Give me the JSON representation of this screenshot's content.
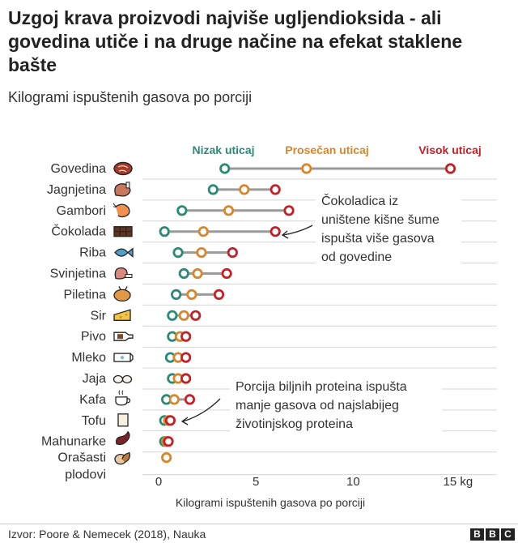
{
  "title": "Uzgoj krava proizvodi najviše ugljendioksida - ali govedina utiče i na druge načine na efekat staklene bašte",
  "subtitle": "Kilogrami ispuštenih gasova po porciji",
  "source": "Izvor: Poore & Nemecek (2018), Nauka",
  "logo_letters": [
    "B",
    "B",
    "C"
  ],
  "colors": {
    "low": "#2a8a78",
    "avg": "#d9862a",
    "high": "#c32127",
    "range": "#9a9a9a",
    "grid": "#d6d6d6"
  },
  "chart_data": {
    "type": "dot-range",
    "title": "Uzgoj krava proizvodi najviše ugljendioksida - ali govedina utiče i na druge načine na efekat staklene bašte",
    "subtitle": "Kilogrami ispuštenih gasova po porciji",
    "xlabel": "Kilogrami ispuštenih gasova po porciji",
    "xlim": [
      0,
      16
    ],
    "x_ticks": [
      {
        "value": 0,
        "label": "0"
      },
      {
        "value": 5,
        "label": "5"
      },
      {
        "value": 10,
        "label": "10"
      },
      {
        "value": 15,
        "label": "15 kg"
      }
    ],
    "grid": true,
    "legend_position": "top",
    "series": [
      {
        "name": "Nizak uticaj",
        "key": "low"
      },
      {
        "name": "Prosečan uticaj",
        "key": "avg"
      },
      {
        "name": "Visok uticaj",
        "key": "high"
      }
    ],
    "categories": [
      {
        "label": "Govedina",
        "icon": "beef-steak-icon",
        "low": 3.4,
        "avg": 7.6,
        "high": 15.0
      },
      {
        "label": "Jagnjetina",
        "icon": "lamb-chop-icon",
        "low": 2.8,
        "avg": 4.4,
        "high": 6.0
      },
      {
        "label": "Gambori",
        "icon": "shrimp-icon",
        "low": 1.2,
        "avg": 3.6,
        "high": 6.7
      },
      {
        "label": "Čokolada",
        "icon": "chocolate-bar-icon",
        "low": 0.3,
        "avg": 2.3,
        "high": 6.0
      },
      {
        "label": "Riba",
        "icon": "fish-icon",
        "low": 1.0,
        "avg": 2.2,
        "high": 3.8
      },
      {
        "label": "Svinjetina",
        "icon": "pork-leg-icon",
        "low": 1.3,
        "avg": 2.0,
        "high": 3.5
      },
      {
        "label": "Piletina",
        "icon": "roast-chicken-icon",
        "low": 0.9,
        "avg": 1.7,
        "high": 3.1
      },
      {
        "label": "Sir",
        "icon": "cheese-icon",
        "low": 0.7,
        "avg": 1.3,
        "high": 1.9
      },
      {
        "label": "Pivo",
        "icon": "beer-bottle-icon",
        "low": 0.7,
        "avg": 1.1,
        "high": 1.4
      },
      {
        "label": "Mleko",
        "icon": "milk-carton-icon",
        "low": 0.6,
        "avg": 1.0,
        "high": 1.4
      },
      {
        "label": "Jaja",
        "icon": "eggs-icon",
        "low": 0.7,
        "avg": 1.0,
        "high": 1.4
      },
      {
        "label": "Kafa",
        "icon": "coffee-cup-icon",
        "low": 0.4,
        "avg": 0.8,
        "high": 1.6
      },
      {
        "label": "Tofu",
        "icon": "tofu-icon",
        "low": 0.3,
        "avg": 0.5,
        "high": 0.6
      },
      {
        "label": "Mahunarke",
        "icon": "bean-icon",
        "low": 0.3,
        "avg": 0.4,
        "high": 0.5
      },
      {
        "label": [
          "Orašasti",
          "plodovi"
        ],
        "icon": "nuts-icon",
        "low": null,
        "avg": 0.4,
        "high": null
      }
    ],
    "annotations": [
      {
        "lines": [
          "Čokoladica iz",
          "uništene kišne šume",
          "ispušta više gasova",
          "od govedine"
        ],
        "points_to": "Čokolada"
      },
      {
        "lines": [
          "Porcija biljnih proteina ispušta",
          "manje gasova od najslabijeg",
          "životinjskog proteina"
        ],
        "points_to": "Tofu"
      }
    ]
  }
}
